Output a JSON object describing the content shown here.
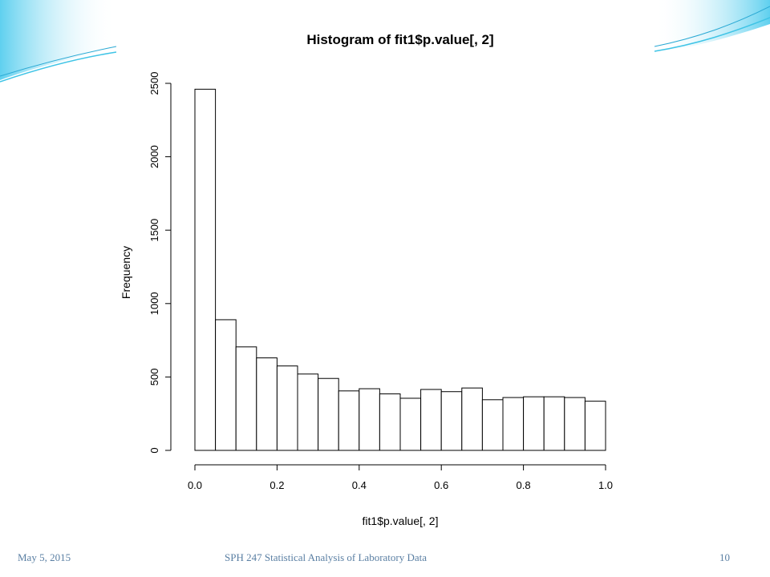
{
  "slide": {
    "footer_date": "May 5, 2015",
    "footer_title": "SPH 247 Statistical Analysis of Laboratory Data",
    "page_number": "10"
  },
  "colors": {
    "bar_fill": "#ffffff",
    "bar_stroke": "#000000",
    "footer_text": "#5a7fa3",
    "swoosh": "#3fc4e6"
  },
  "chart_data": {
    "type": "bar",
    "title": "Histogram of fit1$p.value[, 2]",
    "xlabel": "fit1$p.value[, 2]",
    "ylabel": "Frequency",
    "xlim": [
      0,
      1
    ],
    "ylim": [
      0,
      2500
    ],
    "x_ticks": [
      "0.0",
      "0.2",
      "0.4",
      "0.6",
      "0.8",
      "1.0"
    ],
    "y_ticks": [
      "0",
      "500",
      "1000",
      "1500",
      "2000",
      "2500"
    ],
    "bin_edges": [
      0,
      0.05,
      0.1,
      0.15,
      0.2,
      0.25,
      0.3,
      0.35,
      0.4,
      0.45,
      0.5,
      0.55,
      0.6,
      0.65,
      0.7,
      0.75,
      0.8,
      0.85,
      0.9,
      0.95,
      1.0
    ],
    "values": [
      2460,
      890,
      705,
      630,
      575,
      520,
      490,
      405,
      420,
      385,
      355,
      415,
      400,
      425,
      345,
      360,
      365,
      365,
      360,
      335
    ],
    "grid": false
  }
}
